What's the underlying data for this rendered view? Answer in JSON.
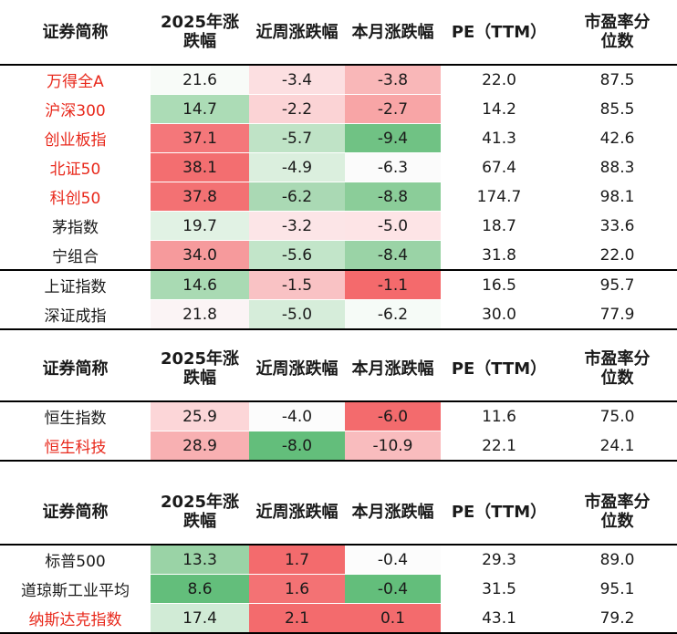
{
  "headers": [
    "证券简称",
    "2025年涨跌幅",
    "近周涨跌幅",
    "本月涨跌幅",
    "PE（TTM）",
    "市盈率分位数"
  ],
  "header_lines": {
    "name": "证券简称",
    "ytd_line1": "2025年涨",
    "ytd_line2": "跌幅",
    "week": "近周涨跌幅",
    "month": "本月涨跌幅",
    "pe": "PE（TTM）",
    "pct_line1": "市盈率分",
    "pct_line2": "位数"
  },
  "colors": {
    "name_red": "#e8291c",
    "up_strong": "#f26d6d",
    "down_strong": "#63be7b"
  },
  "tables": [
    {
      "rows": [
        {
          "name": "万得全A",
          "red": true,
          "ytd": "21.6",
          "week": "-3.4",
          "month": "-3.8",
          "pe": "22.0",
          "pct": "87.5",
          "c_ytd": "#f8fbf8",
          "c_week": "#fcdfe1",
          "c_month": "#f9b7b8"
        },
        {
          "name": "沪深300",
          "red": true,
          "ytd": "14.7",
          "week": "-2.2",
          "month": "-2.7",
          "pe": "14.2",
          "pct": "85.5",
          "c_ytd": "#acdcb6",
          "c_week": "#fbd3d5",
          "c_month": "#f8a5a6"
        },
        {
          "name": "创业板指",
          "red": true,
          "ytd": "37.1",
          "week": "-5.7",
          "month": "-9.4",
          "pe": "41.3",
          "pct": "42.6",
          "c_ytd": "#f4777a",
          "c_week": "#bfe3c6",
          "c_month": "#70c284"
        },
        {
          "name": "北证50",
          "red": true,
          "ytd": "38.1",
          "week": "-4.9",
          "month": "-6.3",
          "pe": "67.4",
          "pct": "88.3",
          "c_ytd": "#f36e70",
          "c_week": "#dbefde",
          "c_month": "#fbfbfb"
        },
        {
          "name": "科创50",
          "red": true,
          "ytd": "37.8",
          "week": "-6.2",
          "month": "-8.8",
          "pe": "174.7",
          "pct": "98.1",
          "c_ytd": "#f37173",
          "c_week": "#aad9b4",
          "c_month": "#8bcd99"
        },
        {
          "name": "茅指数",
          "red": false,
          "ytd": "19.7",
          "week": "-3.2",
          "month": "-5.0",
          "pe": "18.7",
          "pct": "33.6",
          "c_ytd": "#e1f2e4",
          "c_week": "#fce5e7",
          "c_month": "#fde4e6"
        },
        {
          "name": "宁组合",
          "red": false,
          "ytd": "34.0",
          "week": "-5.6",
          "month": "-8.4",
          "pe": "31.8",
          "pct": "22.0",
          "c_ytd": "#f69a9c",
          "c_week": "#c2e5c9",
          "c_month": "#9ad3a6"
        },
        {
          "name": "上证指数",
          "red": false,
          "ytd": "14.6",
          "week": "-1.5",
          "month": "-1.1",
          "pe": "16.5",
          "pct": "95.7",
          "c_ytd": "#a9dab3",
          "c_week": "#f9c2c4",
          "c_month": "#f46a6c",
          "sep": true
        },
        {
          "name": "深证成指",
          "red": false,
          "ytd": "21.8",
          "week": "-5.0",
          "month": "-6.2",
          "pe": "30.0",
          "pct": "77.9",
          "c_ytd": "#fbf4f5",
          "c_week": "#d6edda",
          "c_month": "#f6fbf7"
        }
      ]
    },
    {
      "rows": [
        {
          "name": "恒生指数",
          "red": false,
          "ytd": "25.9",
          "week": "-4.0",
          "month": "-6.0",
          "pe": "11.6",
          "pct": "75.0",
          "c_ytd": "#fcd6d8",
          "c_week": "#fcfcfc",
          "c_month": "#f36b6d"
        },
        {
          "name": "恒生科技",
          "red": true,
          "ytd": "28.9",
          "week": "-8.0",
          "month": "-10.9",
          "pe": "22.1",
          "pct": "24.1",
          "c_ytd": "#f8b0b2",
          "c_week": "#63be7b",
          "c_month": "#f9bcbe"
        }
      ]
    },
    {
      "rows": [
        {
          "name": "标普500",
          "red": false,
          "ytd": "13.3",
          "week": "1.7",
          "month": "-0.4",
          "pe": "29.3",
          "pct": "89.0",
          "c_ytd": "#9ad3a6",
          "c_week": "#f36b6d",
          "c_month": "#fcfcfc"
        },
        {
          "name": "道琼斯工业平均",
          "red": false,
          "ytd": "8.6",
          "week": "1.6",
          "month": "-0.4",
          "pe": "31.5",
          "pct": "95.1",
          "c_ytd": "#63be7b",
          "c_week": "#f37274",
          "c_month": "#63be7b"
        },
        {
          "name": "纳斯达克指数",
          "red": true,
          "ytd": "17.4",
          "week": "2.1",
          "month": "0.1",
          "pe": "43.1",
          "pct": "79.2",
          "c_ytd": "#d1ebd6",
          "c_week": "#f36b6d",
          "c_month": "#f36b6d"
        }
      ]
    }
  ]
}
